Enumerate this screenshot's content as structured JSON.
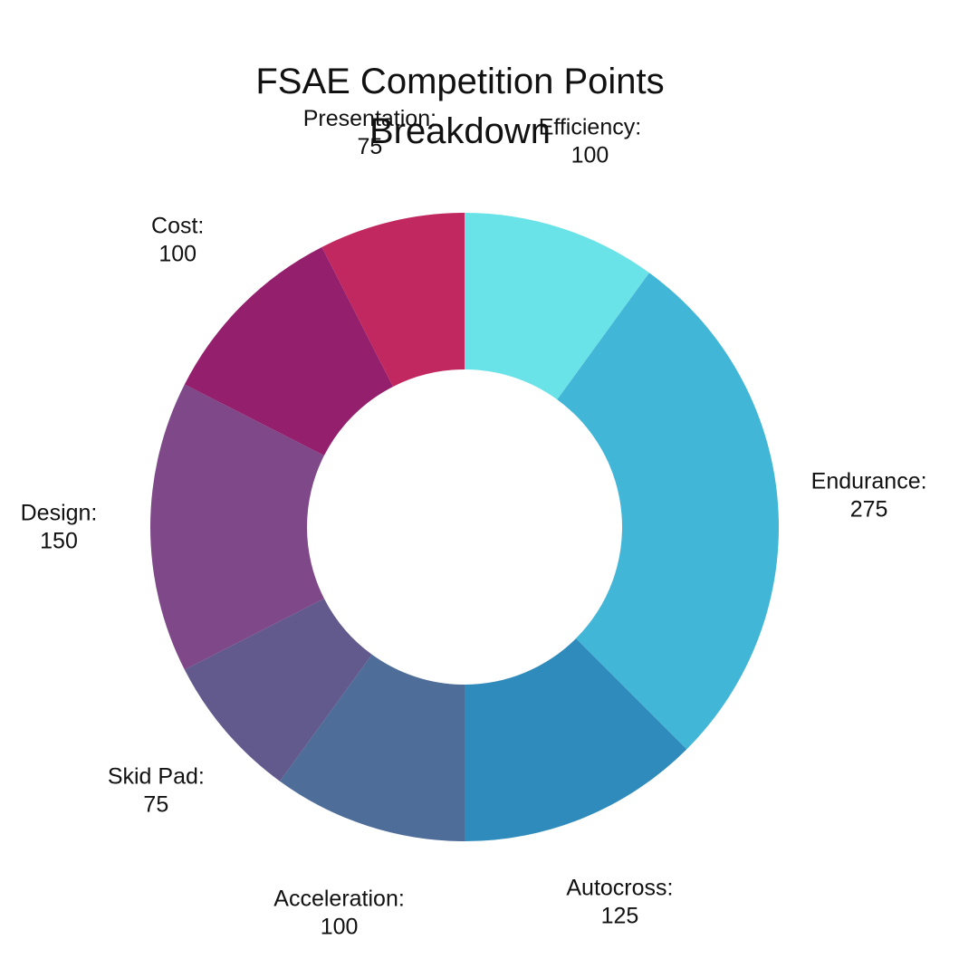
{
  "chart_data": {
    "type": "pie",
    "variant": "donut",
    "title": [
      "FSAE Competition Points",
      "Breakdown"
    ],
    "legend": "none",
    "slices": [
      {
        "label": "Efficiency:",
        "value": 100,
        "color": "#6ae3e8"
      },
      {
        "label": "Endurance:",
        "value": 275,
        "color": "#42b6d6"
      },
      {
        "label": "Autocross:",
        "value": 125,
        "color": "#2f8bbb"
      },
      {
        "label": "Acceleration:",
        "value": 100,
        "color": "#4e6d98"
      },
      {
        "label": "Skid Pad:",
        "value": 75,
        "color": "#625a8d"
      },
      {
        "label": "Design:",
        "value": 150,
        "color": "#7e4889"
      },
      {
        "label": "Cost:",
        "value": 100,
        "color": "#941f6d"
      },
      {
        "label": "Presentation:",
        "value": 75,
        "color": "#c1285f"
      }
    ]
  }
}
